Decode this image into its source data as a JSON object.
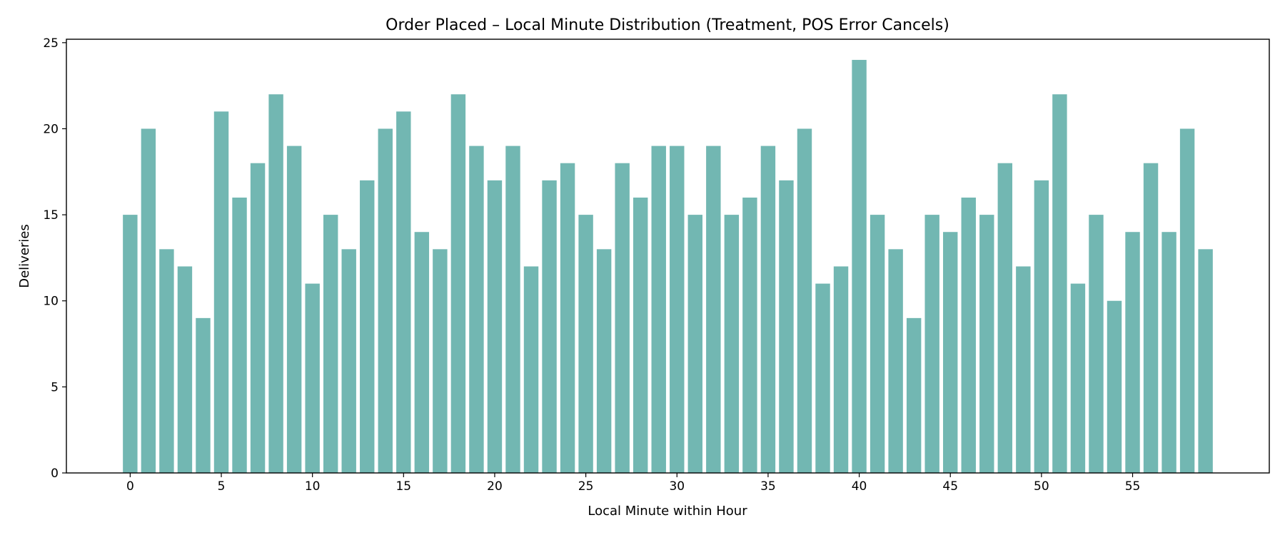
{
  "chart_data": {
    "type": "bar",
    "title": "Order Placed – Local Minute Distribution (Treatment, POS Error Cancels)",
    "xlabel": "Local Minute within Hour",
    "ylabel": "Deliveries",
    "x": [
      0,
      1,
      2,
      3,
      4,
      5,
      6,
      7,
      8,
      9,
      10,
      11,
      12,
      13,
      14,
      15,
      16,
      17,
      18,
      19,
      20,
      21,
      22,
      23,
      24,
      25,
      26,
      27,
      28,
      29,
      30,
      31,
      32,
      33,
      34,
      35,
      36,
      37,
      38,
      39,
      40,
      41,
      42,
      43,
      44,
      45,
      46,
      47,
      48,
      49,
      50,
      51,
      52,
      53,
      54,
      55,
      56,
      57,
      58,
      59
    ],
    "values": [
      15,
      20,
      13,
      12,
      9,
      21,
      16,
      18,
      22,
      19,
      11,
      15,
      13,
      17,
      20,
      21,
      14,
      13,
      22,
      19,
      17,
      19,
      12,
      17,
      18,
      15,
      13,
      18,
      16,
      19,
      19,
      15,
      19,
      15,
      16,
      19,
      17,
      20,
      11,
      12,
      24,
      15,
      13,
      9,
      15,
      14,
      16,
      15,
      18,
      12,
      17,
      22,
      11,
      15,
      10,
      14,
      18,
      14,
      20,
      13
    ],
    "xticks": [
      0,
      5,
      10,
      15,
      20,
      25,
      30,
      35,
      40,
      45,
      50,
      55
    ],
    "yticks": [
      0,
      5,
      10,
      15,
      20,
      25
    ],
    "xlim": [
      -3.5,
      62.5
    ],
    "ylim": [
      0,
      25.2
    ],
    "bar_color": "#72b7b2",
    "grid": false,
    "legend": "none"
  }
}
